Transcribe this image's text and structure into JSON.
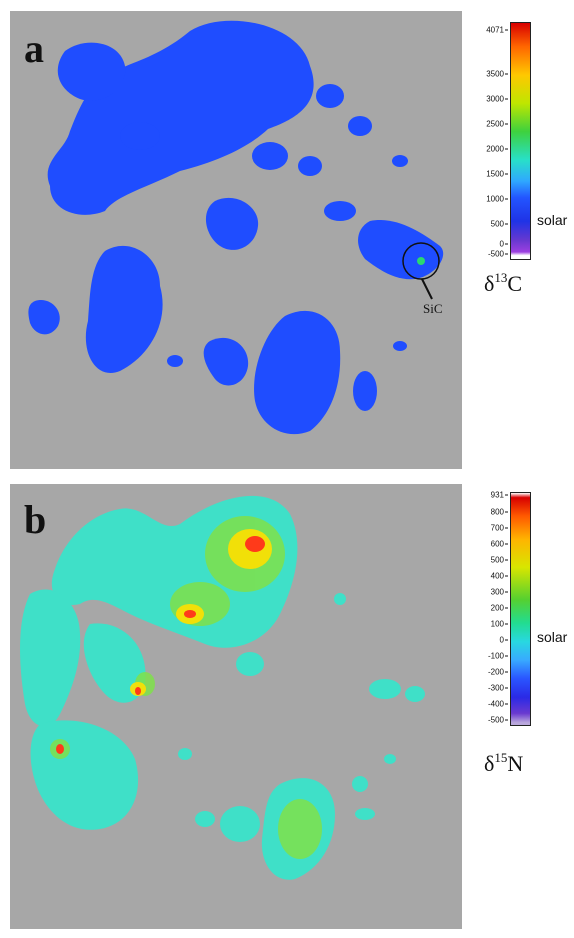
{
  "panel_a": {
    "letter": "a",
    "quantity": {
      "prefix": "δ",
      "isotope": "13",
      "element": "C"
    },
    "colorbar_ticks": [
      "4071",
      "3500",
      "3000",
      "2500",
      "2000",
      "1500",
      "1000",
      "500",
      "0",
      "-500"
    ],
    "reference_label": "solar",
    "annotation": "SiC",
    "colors": {
      "map": "#1f4dff",
      "background": "#a7a7a7"
    }
  },
  "panel_b": {
    "letter": "b",
    "quantity": {
      "prefix": "δ",
      "isotope": "15",
      "element": "N"
    },
    "colorbar_ticks": [
      "931",
      "800",
      "700",
      "600",
      "500",
      "400",
      "300",
      "200",
      "100",
      "0",
      "-100",
      "-200",
      "-300",
      "-400",
      "-500"
    ],
    "reference_label": "solar",
    "colors": {
      "map": "#3fe0c8",
      "hotspot": "#ff3a1a",
      "background": "#a7a7a7"
    }
  }
}
